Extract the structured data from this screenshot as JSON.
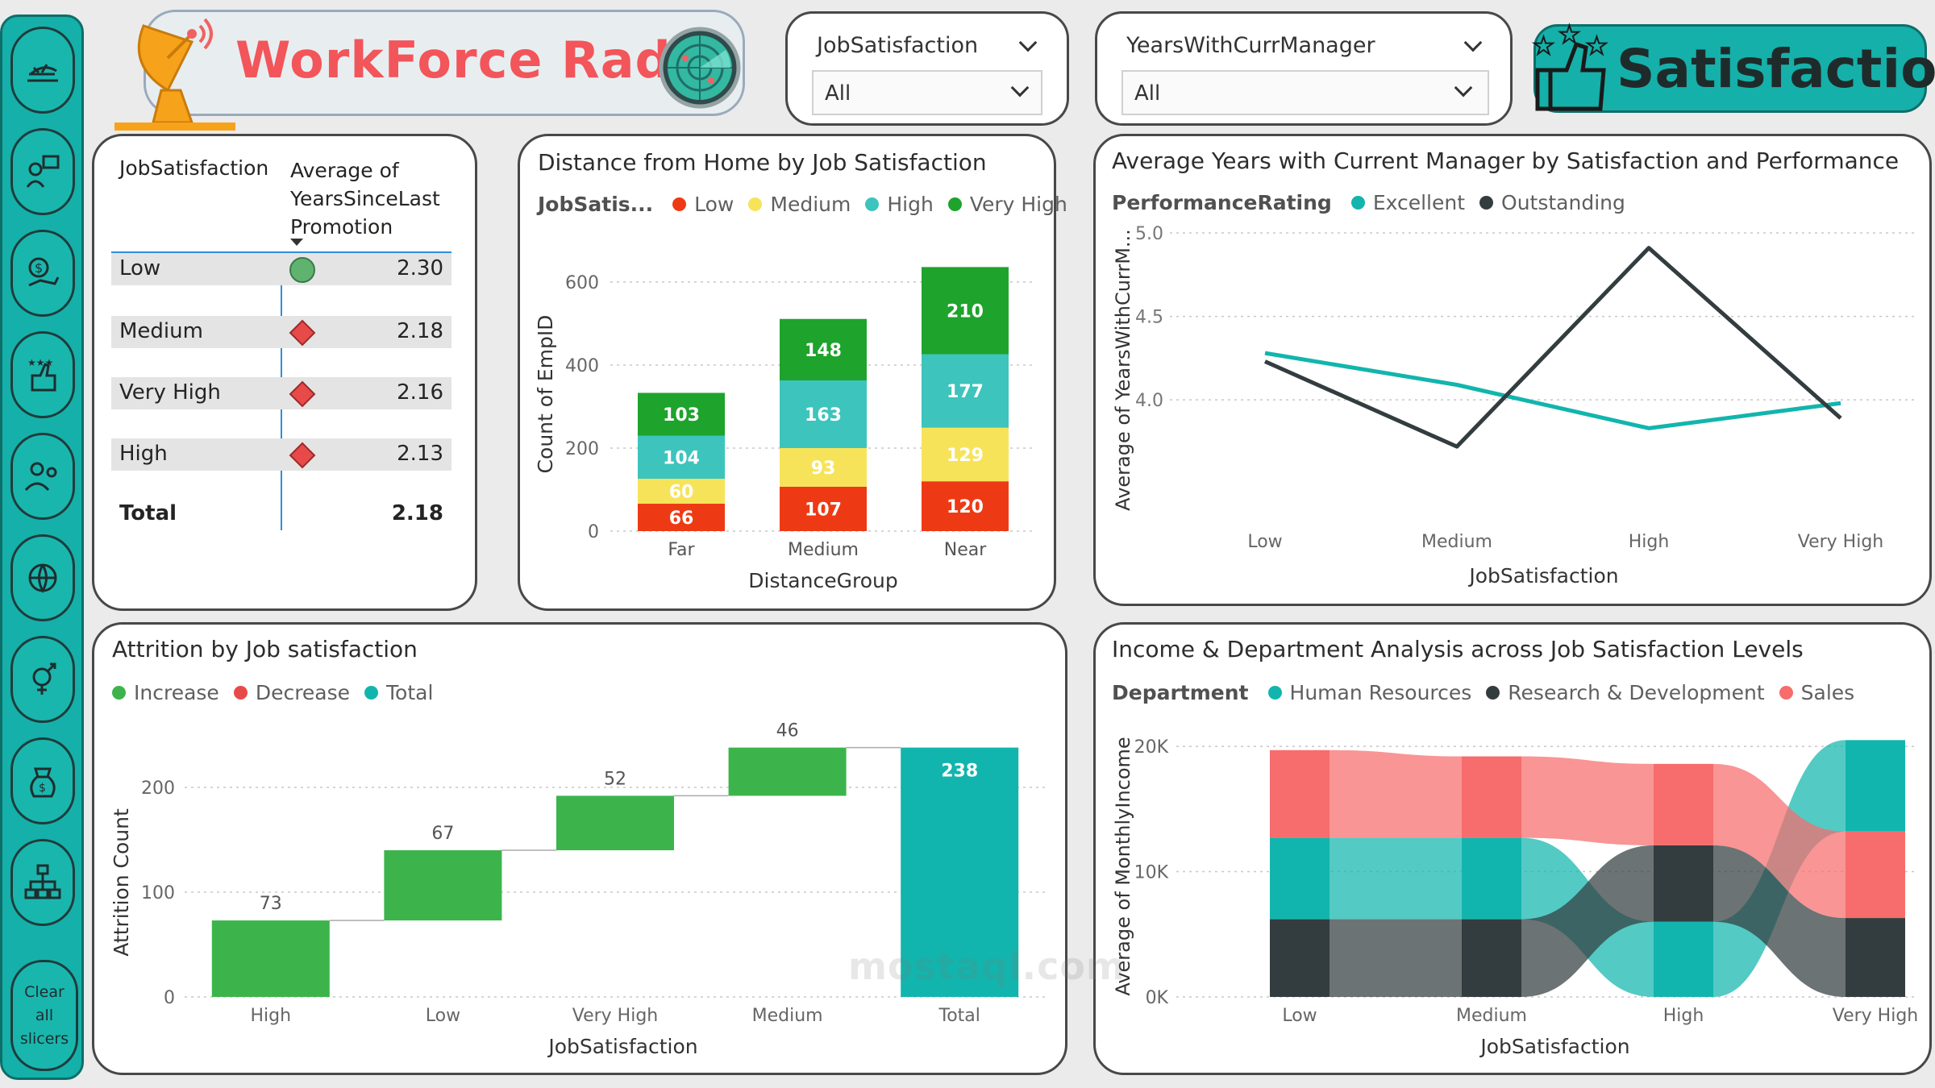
{
  "header": {
    "brand_title": "WorkForce Radar",
    "page_banner": "Satisfaction"
  },
  "sidebar": {
    "items": [
      {
        "icon": "airplane-icon"
      },
      {
        "icon": "training-icon"
      },
      {
        "icon": "salary-icon"
      },
      {
        "icon": "satisfaction-icon"
      },
      {
        "icon": "people-icon"
      },
      {
        "icon": "globe-people-icon"
      },
      {
        "icon": "gender-icon"
      },
      {
        "icon": "money-bag-icon"
      },
      {
        "icon": "org-chart-icon"
      }
    ],
    "clear_label_1": "Clear",
    "clear_label_2": "all",
    "clear_label_3": "slicers"
  },
  "slicers": {
    "job_satisfaction": {
      "label": "JobSatisfaction",
      "value": "All"
    },
    "years_with_curr_manager": {
      "label": "YearsWithCurrManager",
      "value": "All"
    }
  },
  "matrix": {
    "col1": "JobSatisfaction",
    "col2_line1": "Average of",
    "col2_line2": "YearsSinceLast",
    "col2_line3": "Promotion",
    "rows": [
      {
        "label": "Low",
        "value": "2.30",
        "icon": "green-circle"
      },
      {
        "label": "Medium",
        "value": "2.18",
        "icon": "red-diamond"
      },
      {
        "label": "Very High",
        "value": "2.16",
        "icon": "red-diamond"
      },
      {
        "label": "High",
        "value": "2.13",
        "icon": "red-diamond"
      }
    ],
    "total_label": "Total",
    "total_value": "2.18"
  },
  "colors": {
    "low": "#ee3a14",
    "medium": "#f7e35a",
    "high": "#3cc4bd",
    "very_high": "#1ea32c",
    "teal": "#12b5ad",
    "dark": "#333d3f",
    "sales": "#f76c6c",
    "increase": "#3cb44b",
    "decrease": "#e84a4a"
  },
  "chart_data": [
    {
      "type": "bar",
      "stacked": true,
      "title": "Distance from Home by Job Satisfaction",
      "legend_title": "JobSatis...",
      "xlabel": "DistanceGroup",
      "ylabel": "Count of EmpID",
      "categories": [
        "Far",
        "Medium",
        "Near"
      ],
      "ylim": [
        0,
        660
      ],
      "yticks": [
        "0",
        "200",
        "400",
        "600"
      ],
      "series": [
        {
          "name": "Low",
          "values": [
            66,
            107,
            120
          ]
        },
        {
          "name": "Medium",
          "values": [
            60,
            93,
            129
          ]
        },
        {
          "name": "High",
          "values": [
            104,
            163,
            177
          ]
        },
        {
          "name": "Very High",
          "values": [
            103,
            148,
            210
          ]
        }
      ]
    },
    {
      "type": "line",
      "title": "Average Years with Current Manager by Satisfaction and Performance",
      "legend_title": "PerformanceRating",
      "xlabel": "JobSatisfaction",
      "ylabel": "Average of YearsWithCurrM...",
      "categories": [
        "Low",
        "Medium",
        "High",
        "Very High"
      ],
      "ylim": [
        3.6,
        5.0
      ],
      "yticks": [
        "4.0",
        "4.5",
        "5.0"
      ],
      "series": [
        {
          "name": "Excellent",
          "values": [
            4.28,
            4.09,
            3.83,
            3.98
          ]
        },
        {
          "name": "Outstanding",
          "values": [
            4.23,
            3.72,
            4.91,
            3.89
          ]
        }
      ]
    },
    {
      "type": "bar",
      "subtype": "waterfall",
      "title": "Attrition by Job satisfaction",
      "xlabel": "JobSatisfaction",
      "ylabel": "Attrition Count",
      "legend": [
        "Increase",
        "Decrease",
        "Total"
      ],
      "categories": [
        "High",
        "Low",
        "Very High",
        "Medium",
        "Total"
      ],
      "values": [
        73,
        67,
        52,
        46,
        238
      ],
      "ylim": [
        0,
        240
      ],
      "yticks": [
        "0",
        "100",
        "200"
      ]
    },
    {
      "type": "area",
      "subtype": "ribbon",
      "title": "Income & Department Analysis across Job Satisfaction Levels",
      "legend_title": "Department",
      "xlabel": "JobSatisfaction",
      "ylabel": "Average of MonthlyIncome",
      "categories": [
        "Low",
        "Medium",
        "High",
        "Very High"
      ],
      "ylim": [
        0,
        22000
      ],
      "yticks": [
        "0K",
        "10K",
        "20K"
      ],
      "series": [
        {
          "name": "Human Resources",
          "values": [
            6500,
            6500,
            6000,
            7300
          ]
        },
        {
          "name": "Research & Development",
          "values": [
            6200,
            6200,
            6100,
            6300
          ]
        },
        {
          "name": "Sales",
          "values": [
            7000,
            6500,
            6500,
            6900
          ]
        }
      ],
      "stack_order_bottom_to_top": [
        [
          "Research & Development",
          "Human Resources",
          "Sales"
        ],
        [
          "Research & Development",
          "Human Resources",
          "Sales"
        ],
        [
          "Human Resources",
          "Research & Development",
          "Sales"
        ],
        [
          "Research & Development",
          "Sales",
          "Human Resources"
        ]
      ]
    }
  ]
}
